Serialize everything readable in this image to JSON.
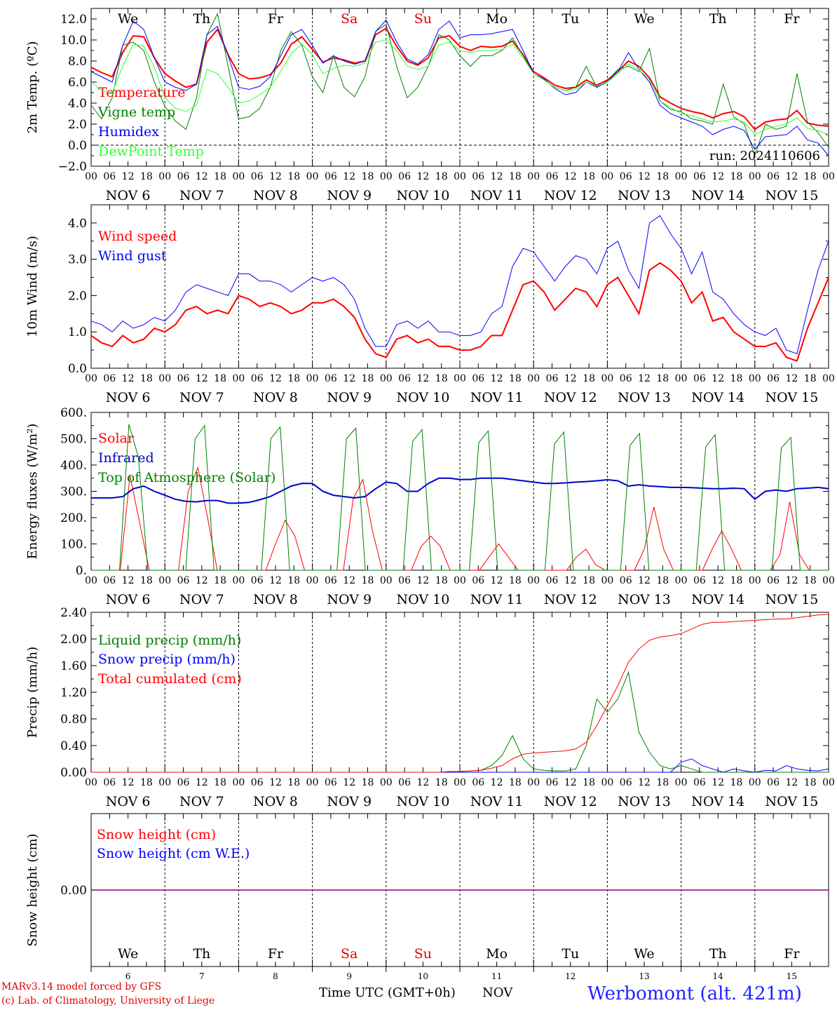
{
  "days": [
    {
      "weekday": "We",
      "date": "6",
      "color": "#000000"
    },
    {
      "weekday": "Th",
      "date": "7",
      "color": "#000000"
    },
    {
      "weekday": "Fr",
      "date": "8",
      "color": "#000000"
    },
    {
      "weekday": "Sa",
      "date": "9",
      "color": "#e00000"
    },
    {
      "weekday": "Su",
      "date": "10",
      "color": "#e00000"
    },
    {
      "weekday": "Mo",
      "date": "11",
      "color": "#000000"
    },
    {
      "weekday": "Tu",
      "date": "12",
      "color": "#000000"
    },
    {
      "weekday": "We",
      "date": "13",
      "color": "#000000"
    },
    {
      "weekday": "Th",
      "date": "14",
      "color": "#000000"
    },
    {
      "weekday": "Fr",
      "date": "15",
      "color": "#000000"
    }
  ],
  "month": "NOV",
  "hour_ticks": [
    "00",
    "06",
    "12",
    "18"
  ],
  "footer": {
    "model": "MARv3.14 model forced by GFS",
    "credit": "(c) Lab. of Climatology, University of Liege",
    "xlabel": "Time UTC (GMT+0h)",
    "month_label": "NOV",
    "station": "Werbomont (alt. 421m)"
  },
  "colors": {
    "red": "#ff0000",
    "blue": "#0000ff",
    "green": "#008000",
    "lightgreen": "#33ff33",
    "darkblue": "#0000cc",
    "purple": "#800080"
  },
  "chart_data": [
    {
      "type": "line",
      "ylabel": "2m Temp. (ºC)",
      "ylim": [
        -2,
        13
      ],
      "yticks": [
        "12.0",
        "10.0",
        "8.0",
        "6.0",
        "4.0",
        "2.0",
        "0.0",
        "−2.0"
      ],
      "yticks_values": [
        12,
        10,
        8,
        6,
        4,
        2,
        0,
        -2
      ],
      "annotation": "run: 2024110606",
      "zero_line": true,
      "series": [
        {
          "name": "Temperature",
          "color": "#ff0000",
          "width": 2,
          "values": [
            7.4,
            6.9,
            6.5,
            8.8,
            10.4,
            10.3,
            8.3,
            6.8,
            6.1,
            5.5,
            5.8,
            9.8,
            11.0,
            8.6,
            6.8,
            6.3,
            6.4,
            6.7,
            7.8,
            9.6,
            10.3,
            9.1,
            7.9,
            8.3,
            8.1,
            7.8,
            8.0,
            10.5,
            11.1,
            9.4,
            8.0,
            7.6,
            8.3,
            10.2,
            10.4,
            9.4,
            9.0,
            9.4,
            9.3,
            9.4,
            9.9,
            8.6,
            7.0,
            6.4,
            5.7,
            5.4,
            5.5,
            6.2,
            5.7,
            6.2,
            7.0,
            8.0,
            7.5,
            6.4,
            4.6,
            4.0,
            3.5,
            3.2,
            3.0,
            2.6,
            3.0,
            3.2,
            2.7,
            1.5,
            2.2,
            2.4,
            2.5,
            3.3,
            2.1,
            1.9,
            1.8
          ]
        },
        {
          "name": "Vigne temp",
          "color": "#008000",
          "width": 1,
          "values": [
            3.8,
            2.5,
            4.5,
            9.5,
            9.8,
            9.0,
            6.0,
            3.7,
            2.3,
            1.5,
            4.5,
            10.5,
            12.5,
            7.5,
            2.5,
            2.7,
            3.5,
            5.5,
            9.0,
            10.8,
            9.5,
            6.5,
            5.0,
            8.5,
            5.5,
            4.6,
            6.5,
            10.8,
            11.5,
            7.5,
            4.5,
            5.5,
            7.5,
            10.5,
            10.0,
            8.5,
            7.5,
            8.5,
            8.5,
            9.0,
            10.2,
            8.5,
            6.8,
            6.2,
            5.5,
            5.2,
            5.5,
            7.5,
            5.5,
            6.1,
            7.2,
            7.5,
            7.0,
            9.2,
            4.2,
            3.4,
            3.2,
            2.5,
            2.3,
            2.0,
            5.8,
            2.7,
            2.0,
            -1.0,
            2.0,
            1.5,
            1.8,
            6.8,
            2.2,
            1.2,
            -0.2
          ]
        },
        {
          "name": "Humidex",
          "color": "#0000ff",
          "width": 1,
          "values": [
            7.0,
            6.5,
            6.0,
            9.5,
            11.8,
            11.0,
            8.3,
            6.0,
            5.5,
            5.2,
            5.8,
            10.5,
            11.3,
            8.5,
            5.5,
            5.3,
            5.6,
            6.5,
            8.5,
            10.5,
            11.0,
            9.5,
            7.8,
            8.5,
            8.0,
            7.7,
            8.0,
            10.8,
            11.9,
            9.8,
            8.2,
            7.7,
            8.6,
            11.0,
            11.8,
            10.2,
            10.5,
            10.5,
            10.6,
            10.8,
            11.0,
            9.0,
            6.8,
            6.3,
            5.4,
            4.8,
            5.0,
            6.0,
            5.5,
            6.0,
            7.0,
            8.8,
            7.2,
            6.0,
            3.8,
            3.0,
            2.6,
            2.2,
            1.8,
            1.0,
            1.5,
            1.8,
            1.4,
            -0.4,
            0.8,
            0.9,
            1.0,
            1.8,
            0.5,
            0.2,
            -1.0
          ]
        },
        {
          "name": "DewPoint Temp",
          "color": "#33ff33",
          "width": 1,
          "values": [
            6.0,
            5.2,
            5.0,
            7.5,
            9.6,
            9.4,
            7.4,
            4.5,
            3.5,
            3.2,
            3.8,
            7.2,
            6.8,
            5.5,
            4.0,
            4.2,
            4.8,
            5.5,
            7.0,
            8.7,
            9.6,
            8.6,
            6.8,
            7.3,
            7.6,
            7.5,
            7.8,
            9.8,
            10.0,
            9.0,
            7.5,
            7.2,
            7.5,
            9.5,
            9.8,
            9.0,
            8.8,
            9.0,
            9.0,
            9.1,
            9.6,
            8.3,
            6.8,
            6.2,
            5.5,
            5.2,
            5.3,
            6.0,
            5.6,
            6.0,
            6.8,
            7.7,
            7.2,
            6.2,
            4.2,
            3.6,
            3.0,
            2.8,
            2.5,
            2.2,
            2.3,
            2.5,
            2.2,
            1.0,
            1.5,
            1.8,
            2.0,
            2.6,
            1.6,
            1.4,
            1.0
          ]
        }
      ]
    },
    {
      "type": "line",
      "ylabel": "10m Wind (m/s)",
      "ylim": [
        0,
        4.5
      ],
      "yticks": [
        "4.0",
        "3.0",
        "2.0",
        "1.0",
        "0.0"
      ],
      "yticks_values": [
        4,
        3,
        2,
        1,
        0
      ],
      "series": [
        {
          "name": "Wind speed",
          "color": "#ff0000",
          "width": 2,
          "values": [
            0.9,
            0.7,
            0.6,
            0.9,
            0.7,
            0.8,
            1.1,
            1.0,
            1.2,
            1.6,
            1.7,
            1.5,
            1.6,
            1.5,
            2.0,
            1.9,
            1.7,
            1.8,
            1.7,
            1.5,
            1.6,
            1.8,
            1.8,
            1.9,
            1.7,
            1.4,
            0.8,
            0.4,
            0.3,
            0.8,
            0.9,
            0.7,
            0.8,
            0.6,
            0.6,
            0.5,
            0.5,
            0.6,
            0.9,
            0.9,
            1.6,
            2.3,
            2.4,
            2.1,
            1.6,
            1.9,
            2.2,
            2.1,
            1.7,
            2.3,
            2.5,
            2.0,
            1.5,
            2.7,
            2.9,
            2.7,
            2.4,
            1.8,
            2.1,
            1.3,
            1.4,
            1.0,
            0.8,
            0.6,
            0.6,
            0.7,
            0.3,
            0.2,
            1.1,
            1.8,
            2.5
          ]
        },
        {
          "name": "Wind gust",
          "color": "#0000ff",
          "width": 1,
          "values": [
            1.3,
            1.2,
            1.0,
            1.3,
            1.1,
            1.2,
            1.4,
            1.3,
            1.6,
            2.1,
            2.3,
            2.2,
            2.1,
            2.0,
            2.6,
            2.6,
            2.4,
            2.4,
            2.3,
            2.1,
            2.3,
            2.5,
            2.4,
            2.5,
            2.3,
            1.9,
            1.1,
            0.6,
            0.6,
            1.2,
            1.3,
            1.1,
            1.3,
            1.0,
            1.0,
            0.9,
            0.9,
            1.0,
            1.5,
            1.7,
            2.8,
            3.3,
            3.2,
            2.8,
            2.4,
            2.8,
            3.1,
            3.0,
            2.6,
            3.3,
            3.5,
            2.7,
            2.2,
            4.0,
            4.2,
            3.7,
            3.3,
            2.6,
            3.2,
            2.1,
            1.9,
            1.5,
            1.2,
            1.0,
            0.9,
            1.1,
            0.5,
            0.4,
            1.6,
            2.7,
            3.5
          ]
        }
      ]
    },
    {
      "type": "line",
      "ylabel": "Energy fluxes (W/m²)",
      "ylim": [
        0,
        600
      ],
      "yticks": [
        "600.",
        "500.",
        "400.",
        "300.",
        "200.",
        "100.",
        "0."
      ],
      "yticks_values": [
        600,
        500,
        400,
        300,
        200,
        100,
        0
      ],
      "series": [
        {
          "name": "Solar",
          "color": "#ff0000",
          "width": 1,
          "values": [
            0,
            0,
            0,
            0,
            360,
            180,
            0,
            0,
            0,
            0,
            300,
            390,
            200,
            0,
            0,
            0,
            0,
            0,
            0,
            100,
            190,
            130,
            0,
            0,
            0,
            0,
            0,
            270,
            345,
            150,
            0,
            0,
            0,
            0,
            90,
            130,
            90,
            0,
            0,
            0,
            0,
            50,
            100,
            50,
            0,
            0,
            0,
            0,
            0,
            0,
            50,
            80,
            20,
            0,
            0,
            0,
            0,
            80,
            240,
            80,
            0,
            0,
            0,
            0,
            80,
            150,
            80,
            0,
            0,
            0,
            0,
            60,
            260,
            60,
            0,
            0,
            0
          ]
        },
        {
          "name": "Infrared",
          "color": "#0000cc",
          "width": 2,
          "values": [
            275,
            275,
            275,
            280,
            310,
            320,
            300,
            285,
            270,
            262,
            260,
            265,
            265,
            255,
            255,
            258,
            268,
            280,
            300,
            320,
            330,
            330,
            300,
            285,
            280,
            275,
            280,
            310,
            335,
            330,
            300,
            300,
            330,
            350,
            350,
            345,
            345,
            350,
            350,
            350,
            345,
            340,
            335,
            330,
            330,
            332,
            335,
            337,
            340,
            344,
            340,
            320,
            325,
            320,
            318,
            315,
            315,
            314,
            312,
            310,
            310,
            312,
            310,
            270,
            300,
            305,
            300,
            310,
            312,
            315,
            310
          ]
        },
        {
          "name": "Top of Atmosphere (Solar)",
          "color": "#008000",
          "width": 1,
          "values": [
            0,
            0,
            0,
            0,
            555,
            430,
            0,
            0,
            0,
            0,
            0,
            500,
            550,
            0,
            0,
            0,
            0,
            0,
            0,
            500,
            545,
            0,
            0,
            0,
            0,
            0,
            0,
            500,
            540,
            0,
            0,
            0,
            0,
            0,
            490,
            535,
            0,
            0,
            0,
            0,
            0,
            485,
            530,
            0,
            0,
            0,
            0,
            0,
            0,
            480,
            525,
            0,
            0,
            0,
            0,
            0,
            0,
            475,
            520,
            0,
            0,
            0,
            0,
            0,
            0,
            470,
            515,
            0,
            0,
            0,
            0,
            0,
            0,
            465,
            505,
            0,
            0,
            0,
            0
          ]
        }
      ]
    },
    {
      "type": "line",
      "ylabel": "Precip (mm/h)",
      "ylim": [
        0,
        2.4
      ],
      "yticks": [
        "2.40",
        "2.00",
        "1.60",
        "1.20",
        "0.80",
        "0.40",
        "0.00"
      ],
      "yticks_values": [
        2.4,
        2.0,
        1.6,
        1.2,
        0.8,
        0.4,
        0.0
      ],
      "series": [
        {
          "name": "Liquid precip (mm/h)",
          "color": "#008000",
          "width": 1,
          "values": [
            0,
            0,
            0,
            0,
            0,
            0,
            0,
            0,
            0,
            0,
            0,
            0,
            0,
            0,
            0,
            0,
            0,
            0,
            0,
            0,
            0,
            0,
            0,
            0,
            0,
            0,
            0,
            0,
            0,
            0,
            0,
            0,
            0,
            0,
            0,
            0.01,
            0.02,
            0.03,
            0.1,
            0.25,
            0.55,
            0.2,
            0.05,
            0.03,
            0.02,
            0.02,
            0.05,
            0.4,
            1.1,
            0.9,
            1.1,
            1.5,
            0.6,
            0.3,
            0.1,
            0.05,
            0.1,
            0.05,
            0,
            0,
            0,
            0,
            0,
            0,
            0,
            0,
            0,
            0,
            0,
            0,
            0
          ]
        },
        {
          "name": "Snow precip (mm/h)",
          "color": "#0000ff",
          "width": 1,
          "values": [
            0,
            0,
            0,
            0,
            0,
            0,
            0,
            0,
            0,
            0,
            0,
            0,
            0,
            0,
            0,
            0,
            0,
            0,
            0,
            0,
            0,
            0,
            0,
            0,
            0,
            0,
            0,
            0,
            0,
            0,
            0,
            0,
            0,
            0,
            0,
            0,
            0,
            0,
            0,
            0,
            0,
            0,
            0,
            0,
            0,
            0,
            0,
            0,
            0,
            0,
            0,
            0,
            0,
            0,
            0,
            0,
            0.15,
            0.2,
            0.1,
            0.05,
            0,
            0.05,
            0.02,
            0,
            0.03,
            0.02,
            0.1,
            0.05,
            0.03,
            0.02,
            0.05
          ]
        },
        {
          "name": "Total cumulated (cm)",
          "color": "#ff0000",
          "width": 1,
          "values": [
            0,
            0,
            0,
            0,
            0,
            0,
            0,
            0,
            0,
            0,
            0,
            0,
            0,
            0,
            0,
            0,
            0,
            0,
            0,
            0,
            0,
            0,
            0,
            0,
            0,
            0,
            0,
            0,
            0,
            0,
            0,
            0,
            0,
            0,
            0.01,
            0.01,
            0.02,
            0.03,
            0.06,
            0.1,
            0.2,
            0.27,
            0.29,
            0.3,
            0.31,
            0.32,
            0.35,
            0.45,
            0.7,
            1.0,
            1.3,
            1.65,
            1.85,
            1.98,
            2.03,
            2.05,
            2.08,
            2.15,
            2.22,
            2.25,
            2.25,
            2.26,
            2.27,
            2.28,
            2.29,
            2.3,
            2.3,
            2.32,
            2.34,
            2.36,
            2.37
          ]
        }
      ]
    },
    {
      "type": "line",
      "ylabel": "Snow height (cm)",
      "ylim": [
        -1,
        1
      ],
      "yticks": [
        "0.00"
      ],
      "yticks_values": [
        0
      ],
      "series": [
        {
          "name": "Snow height (cm)",
          "color": "#ff0000",
          "width": 1,
          "values": [
            0,
            0
          ]
        },
        {
          "name": "Snow height (cm W.E.)",
          "color": "#0000ff",
          "width": 1,
          "values": [
            0,
            0
          ]
        }
      ]
    }
  ]
}
